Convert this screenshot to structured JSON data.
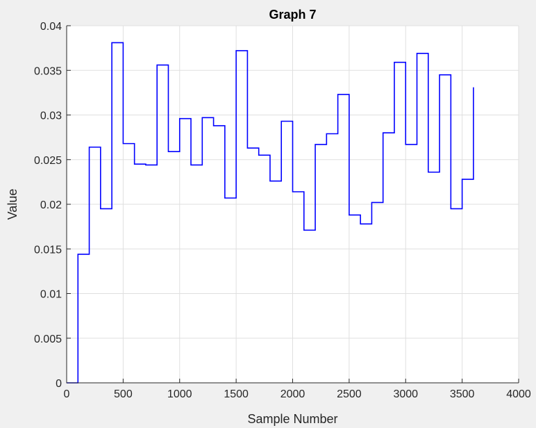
{
  "colors": {
    "figure_background": "#f0f0f0",
    "axes_background": "#ffffff",
    "grid": "#dfdfdf",
    "axis": "#262626",
    "series": "#0000ff"
  },
  "chart_data": {
    "type": "line",
    "style": "stairs",
    "title": "Graph  7",
    "xlabel": "Sample Number",
    "ylabel": "Value",
    "xlim": [
      0,
      4000
    ],
    "ylim": [
      0,
      0.04
    ],
    "grid": true,
    "x_ticks": [
      0,
      500,
      1000,
      1500,
      2000,
      2500,
      3000,
      3500,
      4000
    ],
    "y_ticks": [
      0,
      0.005,
      0.01,
      0.015,
      0.02,
      0.025,
      0.03,
      0.035,
      0.04
    ],
    "x_tick_labels": [
      "0",
      "500",
      "1000",
      "1500",
      "2000",
      "2500",
      "3000",
      "3500",
      "4000"
    ],
    "y_tick_labels": [
      "0",
      "0.005",
      "0.01",
      "0.015",
      "0.02",
      "0.025",
      "0.03",
      "0.035",
      "0.04"
    ],
    "series": [
      {
        "x": [
          0,
          100,
          200,
          300,
          400,
          500,
          600,
          700,
          800,
          900,
          1000,
          1100,
          1200,
          1300,
          1400,
          1500,
          1600,
          1700,
          1800,
          1900,
          2000,
          2100,
          2200,
          2300,
          2400,
          2500,
          2600,
          2700,
          2800,
          2900,
          3000,
          3100,
          3200,
          3300,
          3400,
          3500,
          3600
        ],
        "values": [
          0,
          0.0144,
          0.0264,
          0.0195,
          0.0381,
          0.0268,
          0.0245,
          0.0244,
          0.0356,
          0.0259,
          0.0296,
          0.0244,
          0.0297,
          0.0288,
          0.0207,
          0.0372,
          0.0263,
          0.0255,
          0.0226,
          0.0293,
          0.0214,
          0.0171,
          0.0267,
          0.0279,
          0.0323,
          0.0188,
          0.0178,
          0.0202,
          0.028,
          0.0359,
          0.0267,
          0.0369,
          0.0236,
          0.0345,
          0.0195,
          0.0228,
          0.0331
        ]
      }
    ]
  }
}
